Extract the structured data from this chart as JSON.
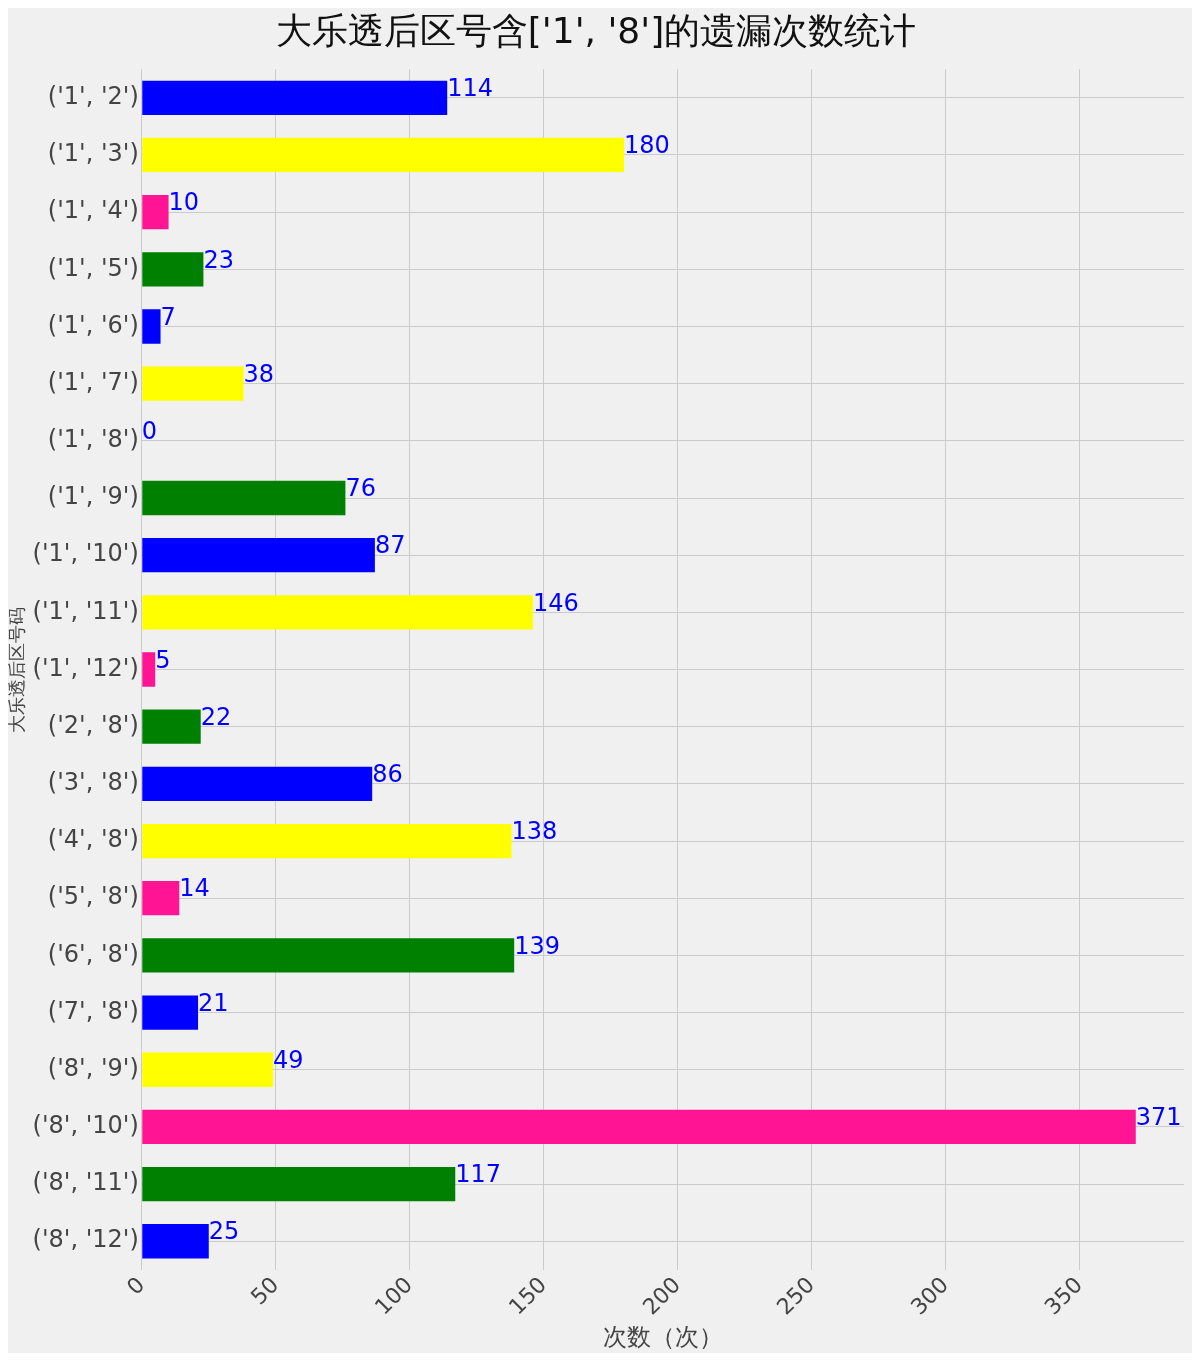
{
  "chart_data": {
    "type": "bar",
    "orientation": "horizontal",
    "title": "大乐透后区号含['1', '8']的遗漏次数统计",
    "xlabel": "次数（次）",
    "ylabel": "大乐透后区号码",
    "categories": [
      "('1', '2')",
      "('1', '3')",
      "('1', '4')",
      "('1', '5')",
      "('1', '6')",
      "('1', '7')",
      "('1', '8')",
      "('1', '9')",
      "('1', '10')",
      "('1', '11')",
      "('1', '12')",
      "('2', '8')",
      "('3', '8')",
      "('4', '8')",
      "('5', '8')",
      "('6', '8')",
      "('7', '8')",
      "('8', '9')",
      "('8', '10')",
      "('8', '11')",
      "('8', '12')"
    ],
    "values": [
      114,
      180,
      10,
      23,
      7,
      38,
      0,
      76,
      87,
      146,
      5,
      22,
      86,
      138,
      14,
      139,
      21,
      49,
      371,
      117,
      25
    ],
    "colors": [
      "#0000ff",
      "#ffff00",
      "#ff1493",
      "#008000",
      "#0000ff",
      "#ffff00",
      "#ff1493",
      "#008000",
      "#0000ff",
      "#ffff00",
      "#ff1493",
      "#008000",
      "#0000ff",
      "#ffff00",
      "#ff1493",
      "#008000",
      "#0000ff",
      "#ffff00",
      "#ff1493",
      "#008000",
      "#0000ff"
    ],
    "xlim": [
      0,
      389
    ],
    "xticks": [
      0,
      50,
      100,
      150,
      200,
      250,
      300,
      350
    ],
    "grid": true,
    "data_labels": true
  }
}
